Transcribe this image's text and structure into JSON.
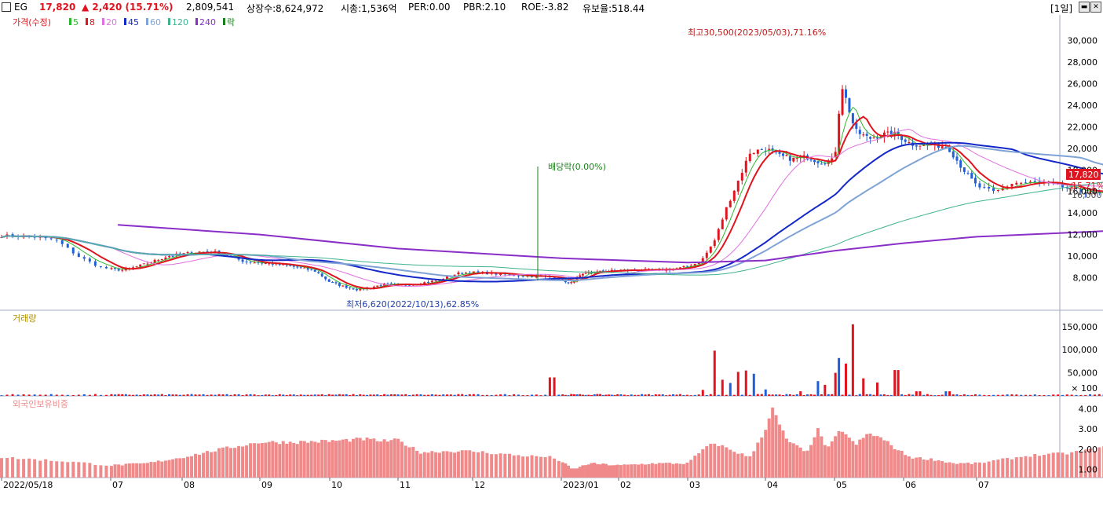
{
  "header": {
    "symbol": "EG",
    "price": "17,820",
    "change": "▲ 2,420 (15.71%)",
    "volume": "2,809,541",
    "shares": "상장수:8,624,972",
    "mktcap": "시총:1,536억",
    "per": "PER:0.00",
    "pbr": "PBR:2.10",
    "roe": "ROE:-3.82",
    "reserve": "유보율:518.44",
    "period": "[1일]"
  },
  "colors": {
    "up": "#e0141e",
    "down": "#1f5fd8",
    "ma5": "#2db92d",
    "ma8": "#e0141e",
    "ma20": "#e070e0",
    "ma45": "#1428c8",
    "ma60": "#7fa3d6",
    "ma120": "#3fb28e",
    "ma240": "#8a2ec8",
    "foreign": "#f08a8a"
  },
  "chart_data": [
    {
      "type": "line",
      "title": "가격(수정)",
      "legend": [
        "5",
        "8",
        "20",
        "45",
        "60",
        "120",
        "240",
        "락"
      ],
      "x_ticks": [
        "2022/05/18",
        "07",
        "08",
        "09",
        "10",
        "11",
        "12",
        "2023/01",
        "02",
        "03",
        "04",
        "05",
        "06",
        "07"
      ],
      "y_ticks": [
        "8,000",
        "10,000",
        "12,000",
        "14,000",
        "16,000",
        "18,000",
        "20,000",
        "22,000",
        "24,000",
        "26,000",
        "28,000",
        "30,000"
      ],
      "ylim": [
        6000,
        31500
      ],
      "close_series": [
        [
          0,
          11900
        ],
        [
          0.3,
          11800
        ],
        [
          0.5,
          11500
        ],
        [
          0.7,
          10000
        ],
        [
          0.9,
          9000
        ],
        [
          1.0,
          8800
        ],
        [
          1.2,
          8700
        ],
        [
          1.5,
          9300
        ],
        [
          1.8,
          10000
        ],
        [
          2.0,
          10200
        ],
        [
          2.2,
          10400
        ],
        [
          2.4,
          10400
        ],
        [
          2.6,
          10000
        ],
        [
          2.8,
          9500
        ],
        [
          3.0,
          9400
        ],
        [
          3.3,
          9200
        ],
        [
          3.6,
          8900
        ],
        [
          3.8,
          8600
        ],
        [
          4.0,
          7600
        ],
        [
          4.2,
          7200
        ],
        [
          4.4,
          6900
        ],
        [
          4.6,
          7100
        ],
        [
          4.8,
          7400
        ],
        [
          5.0,
          7300
        ],
        [
          5.2,
          7400
        ],
        [
          5.5,
          7700
        ],
        [
          5.8,
          8400
        ],
        [
          6.0,
          8500
        ],
        [
          6.2,
          8400
        ],
        [
          6.5,
          8200
        ],
        [
          6.8,
          8100
        ],
        [
          7.0,
          7900
        ],
        [
          7.15,
          7400
        ],
        [
          7.3,
          8100
        ],
        [
          7.5,
          8500
        ],
        [
          7.8,
          8600
        ],
        [
          8.0,
          8700
        ],
        [
          8.3,
          8700
        ],
        [
          8.6,
          8700
        ],
        [
          8.9,
          8900
        ],
        [
          9.1,
          9300
        ],
        [
          9.2,
          9800
        ],
        [
          9.35,
          11500
        ],
        [
          9.5,
          14500
        ],
        [
          9.65,
          17000
        ],
        [
          9.8,
          19600
        ],
        [
          10.0,
          20000
        ],
        [
          10.2,
          19300
        ],
        [
          10.4,
          19000
        ],
        [
          10.6,
          19200
        ],
        [
          10.8,
          18700
        ],
        [
          11.0,
          18900
        ],
        [
          11.1,
          26000
        ],
        [
          11.2,
          23800
        ],
        [
          11.3,
          21600
        ],
        [
          11.5,
          20900
        ],
        [
          11.7,
          21300
        ],
        [
          11.9,
          21300
        ],
        [
          12.1,
          20400
        ],
        [
          12.4,
          20300
        ],
        [
          12.6,
          20200
        ],
        [
          12.8,
          18200
        ],
        [
          13.0,
          16500
        ],
        [
          13.2,
          15900
        ],
        [
          13.4,
          16800
        ],
        [
          13.6,
          16800
        ],
        [
          13.8,
          16700
        ],
        [
          14.0,
          16300
        ],
        [
          14.2,
          15900
        ],
        [
          14.4,
          15800
        ],
        [
          14.6,
          17800
        ]
      ],
      "annotations": [
        "최고30,500(2023/05/03),71.16%",
        "최저6,620(2022/10/13),62.85%",
        "배당락(0.00%)"
      ],
      "last_price_label": "17,820",
      "last_change_label": "15.71%",
      "last_low_label": "16,000"
    },
    {
      "type": "bar",
      "title": "거래량",
      "y_ticks": [
        "50,000",
        "100,000",
        "150,000"
      ],
      "unit_label": "× 100",
      "ylim": [
        0,
        165000
      ],
      "spikes": [
        [
          0.3,
          3000
        ],
        [
          6.9,
          40000
        ],
        [
          9.2,
          13000
        ],
        [
          9.35,
          98000
        ],
        [
          9.45,
          35000
        ],
        [
          9.55,
          28000
        ],
        [
          9.65,
          52000
        ],
        [
          9.75,
          55000
        ],
        [
          9.85,
          48000
        ],
        [
          10.0,
          14000
        ],
        [
          10.5,
          10000
        ],
        [
          10.75,
          32000
        ],
        [
          10.85,
          24000
        ],
        [
          11.0,
          50000
        ],
        [
          11.05,
          82000
        ],
        [
          11.15,
          70000
        ],
        [
          11.25,
          155000
        ],
        [
          11.4,
          38000
        ],
        [
          11.6,
          29000
        ],
        [
          11.9,
          56000
        ],
        [
          12.2,
          10000
        ],
        [
          12.6,
          10000
        ],
        [
          14.6,
          26000
        ]
      ]
    },
    {
      "type": "bar",
      "title": "외국인보유비중",
      "y_ticks": [
        "1.00",
        "2.00",
        "3.00",
        "4.00"
      ],
      "ylim": [
        0.6,
        4.4
      ],
      "profile": [
        [
          0,
          1.6
        ],
        [
          0.6,
          1.4
        ],
        [
          1.0,
          1.2
        ],
        [
          1.5,
          1.3
        ],
        [
          2.0,
          1.6
        ],
        [
          2.5,
          2.0
        ],
        [
          3.0,
          2.35
        ],
        [
          3.5,
          2.35
        ],
        [
          4.0,
          2.4
        ],
        [
          4.5,
          2.5
        ],
        [
          4.8,
          2.4
        ],
        [
          5.0,
          2.45
        ],
        [
          5.3,
          1.85
        ],
        [
          5.6,
          1.9
        ],
        [
          6.0,
          1.9
        ],
        [
          6.5,
          1.7
        ],
        [
          6.9,
          1.6
        ],
        [
          7.2,
          1.0
        ],
        [
          7.5,
          1.3
        ],
        [
          8.0,
          1.2
        ],
        [
          8.5,
          1.3
        ],
        [
          9.0,
          1.3
        ],
        [
          9.2,
          2.0
        ],
        [
          9.35,
          2.3
        ],
        [
          9.6,
          1.9
        ],
        [
          9.8,
          1.6
        ],
        [
          10.0,
          3.0
        ],
        [
          10.1,
          4.0
        ],
        [
          10.3,
          2.5
        ],
        [
          10.6,
          1.8
        ],
        [
          10.75,
          3.0
        ],
        [
          10.9,
          2.0
        ],
        [
          11.1,
          3.0
        ],
        [
          11.3,
          2.2
        ],
        [
          11.5,
          2.8
        ],
        [
          11.7,
          2.5
        ],
        [
          11.9,
          2.0
        ],
        [
          12.1,
          1.6
        ],
        [
          12.4,
          1.5
        ],
        [
          12.7,
          1.3
        ],
        [
          13.0,
          1.3
        ],
        [
          13.3,
          1.5
        ],
        [
          13.6,
          1.7
        ],
        [
          14.0,
          1.8
        ],
        [
          14.3,
          2.0
        ],
        [
          14.6,
          2.3
        ]
      ]
    }
  ],
  "icons": [
    "checkbox-icon",
    "minimize-icon",
    "close-icon",
    "panel-mini-icon"
  ]
}
